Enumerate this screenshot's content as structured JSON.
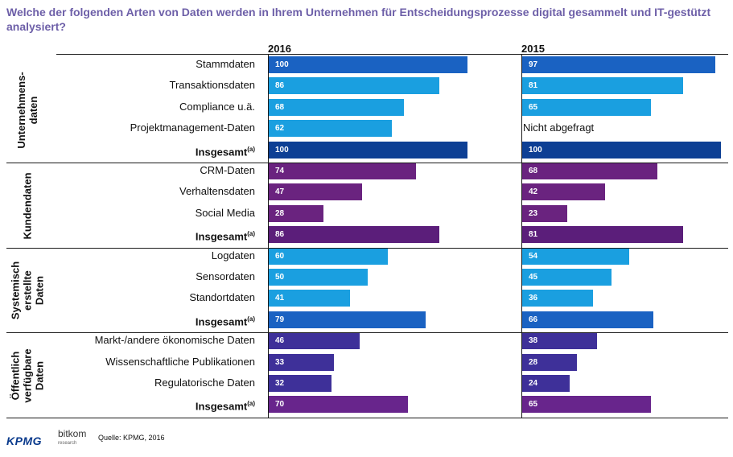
{
  "title": "Welche der folgenden Arten von Daten werden in Ihrem Unternehmen für Entscheidungsprozesse digital gesammelt und IT-gestützt analysiert?",
  "footer": {
    "kpmg": "KPMG",
    "bitkom": "bitkom",
    "bitkom_sub": "research",
    "source": "Quelle:   KPMG, 2016"
  },
  "chart_data": {
    "type": "bar",
    "orientation": "horizontal",
    "title": "Welche der folgenden Arten von Daten werden in Ihrem Unternehmen für Entscheidungsprozesse digital gesammelt und IT-gestützt analysiert?",
    "xlim": [
      0,
      100
    ],
    "years": [
      "2016",
      "2015"
    ],
    "total_suffix": "(a)",
    "not_asked_label": "Nicht abgefragt",
    "colors": {
      "blue_dark": "#0d3f94",
      "blue_mid": "#1a62c2",
      "blue_light": "#1a9fe0",
      "purple_dark": "#5b1e7a",
      "purple_mid": "#6a237f",
      "violet": "#3e3099",
      "violet_total": "#68258c"
    },
    "groups": [
      {
        "name": "Unternehmens-daten",
        "lines": [
          "Unternehmens-",
          "daten"
        ],
        "rows": [
          {
            "label": "Stammdaten",
            "v2016": 100,
            "v2015": 97,
            "color": "#1a62c2"
          },
          {
            "label": "Transaktionsdaten",
            "v2016": 86,
            "v2015": 81,
            "color": "#1a9fe0"
          },
          {
            "label": "Compliance u.ä.",
            "v2016": 68,
            "v2015": 65,
            "color": "#1a9fe0"
          },
          {
            "label": "Projektmanagement-Daten",
            "v2016": 62,
            "v2015": null,
            "color": "#1a9fe0"
          },
          {
            "label": "Insgesamt",
            "v2016": 100,
            "v2015": 100,
            "color": "#0d3f94",
            "total": true
          }
        ]
      },
      {
        "name": "Kundendaten",
        "lines": [
          "Kundendaten"
        ],
        "rows": [
          {
            "label": "CRM-Daten",
            "v2016": 74,
            "v2015": 68,
            "color": "#6a237f"
          },
          {
            "label": "Verhaltensdaten",
            "v2016": 47,
            "v2015": 42,
            "color": "#6a237f"
          },
          {
            "label": "Social Media",
            "v2016": 28,
            "v2015": 23,
            "color": "#6a237f"
          },
          {
            "label": "Insgesamt",
            "v2016": 86,
            "v2015": 81,
            "color": "#5b1e7a",
            "total": true
          }
        ]
      },
      {
        "name": "Systemisch erstellte Daten",
        "lines": [
          "Systemisch",
          "erstellte",
          "Daten"
        ],
        "rows": [
          {
            "label": "Logdaten",
            "v2016": 60,
            "v2015": 54,
            "color": "#1a9fe0"
          },
          {
            "label": "Sensordaten",
            "v2016": 50,
            "v2015": 45,
            "color": "#1a9fe0"
          },
          {
            "label": "Standortdaten",
            "v2016": 41,
            "v2015": 36,
            "color": "#1a9fe0"
          },
          {
            "label": "Insgesamt",
            "v2016": 79,
            "v2015": 66,
            "color": "#1a62c2",
            "total": true
          }
        ]
      },
      {
        "name": "Öffentlich verfügbare Daten",
        "lines": [
          "Öffentlich",
          "verfügbare",
          "Daten"
        ],
        "rows": [
          {
            "label": "Markt-/andere ökonomische Daten",
            "v2016": 46,
            "v2015": 38,
            "color": "#3e3099"
          },
          {
            "label": "Wissenschaftliche Publikationen",
            "v2016": 33,
            "v2015": 28,
            "color": "#3e3099"
          },
          {
            "label": "Regulatorische Daten",
            "v2016": 32,
            "v2015": 24,
            "color": "#3e3099"
          },
          {
            "label": "Insgesamt",
            "v2016": 70,
            "v2015": 65,
            "color": "#68258c",
            "total": true
          }
        ]
      }
    ]
  }
}
